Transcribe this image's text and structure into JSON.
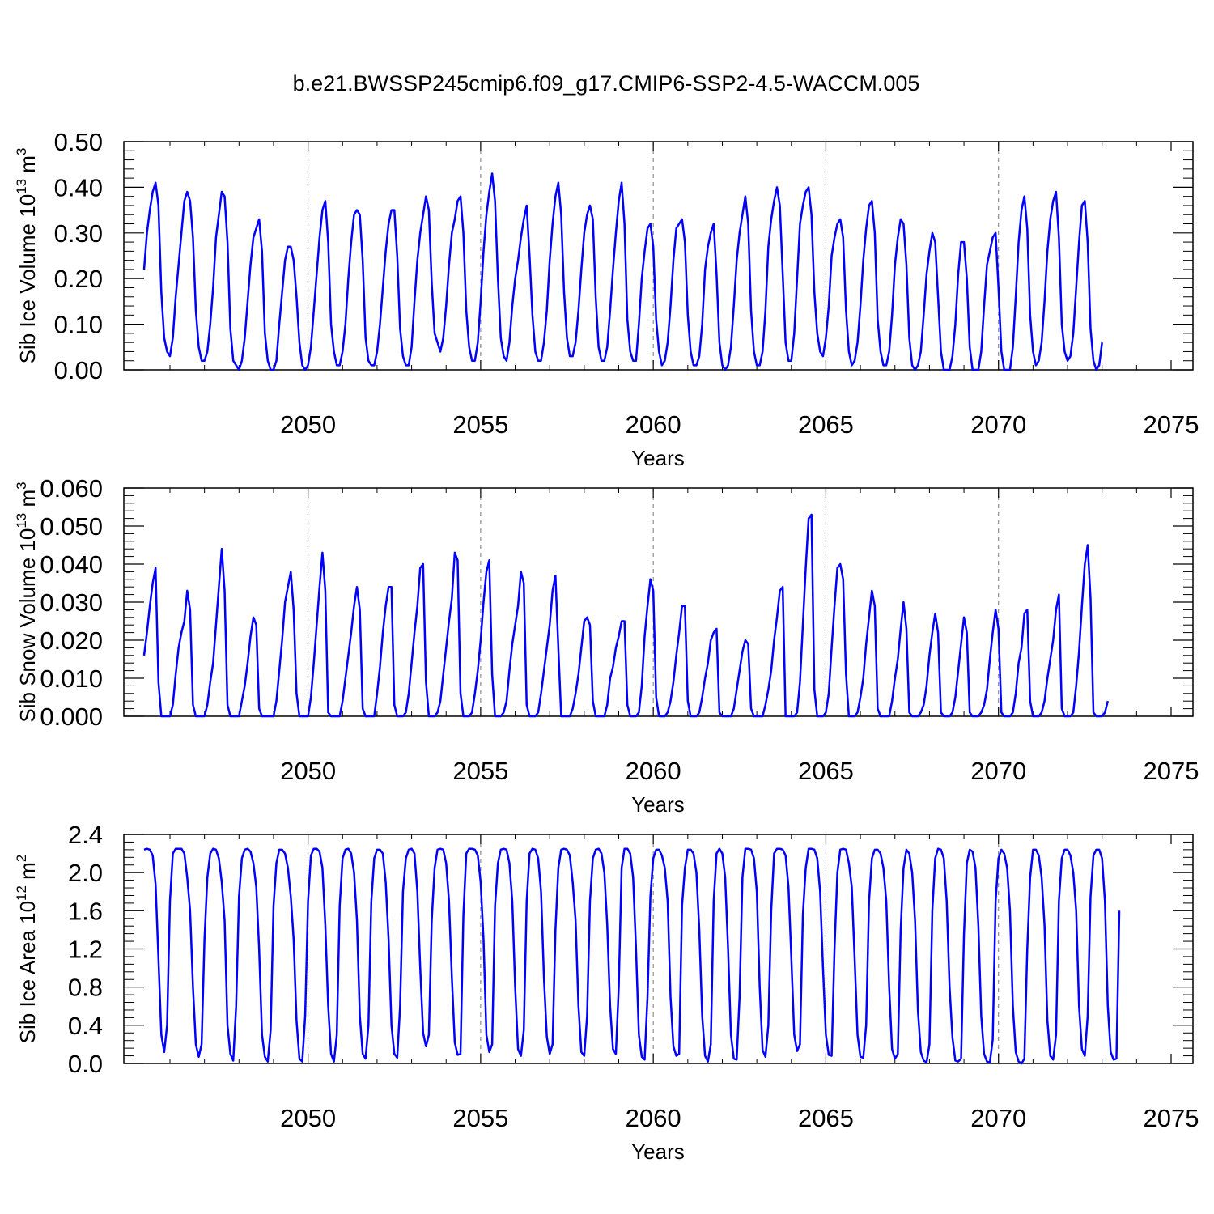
{
  "title": "b.e21.BWSSP245cmip6.f09_g17.CMIP6-SSP2-4.5-WACCM.005",
  "line_color": "#0000ff",
  "chart_data": [
    {
      "type": "line",
      "ylabel": "Sib Ice Volume 10",
      "ylabel_sup": "13",
      "ylabel_unit": " m",
      "ylabel_unit_sup": "3",
      "xlabel": "Years",
      "xlim": [
        2045.25,
        2075.0
      ],
      "ylim": [
        0.0,
        0.5
      ],
      "xticks": [
        2050,
        2055,
        2060,
        2065,
        2070,
        2075
      ],
      "xtick_labels": [
        "2050",
        "2055",
        "2060",
        "2065",
        "2070",
        "2075"
      ],
      "yticks": [
        0.0,
        0.1,
        0.2,
        0.3,
        0.4,
        0.5
      ],
      "ytick_labels": [
        "0.00",
        "0.10",
        "0.20",
        "0.30",
        "0.40",
        "0.50"
      ],
      "grid": "vertical dashed at 5-year ticks",
      "x_start": 2045.25,
      "x_step_months": 1,
      "values": [
        0.22,
        0.3,
        0.35,
        0.39,
        0.41,
        0.36,
        0.17,
        0.07,
        0.04,
        0.03,
        0.07,
        0.16,
        0.23,
        0.3,
        0.37,
        0.39,
        0.37,
        0.29,
        0.13,
        0.05,
        0.02,
        0.02,
        0.04,
        0.1,
        0.18,
        0.29,
        0.34,
        0.39,
        0.38,
        0.28,
        0.09,
        0.02,
        0.01,
        0.0,
        0.02,
        0.07,
        0.15,
        0.23,
        0.29,
        0.31,
        0.33,
        0.26,
        0.08,
        0.02,
        0.0,
        0.0,
        0.02,
        0.1,
        0.17,
        0.24,
        0.27,
        0.27,
        0.24,
        0.16,
        0.06,
        0.01,
        0.0,
        0.01,
        0.05,
        0.13,
        0.21,
        0.29,
        0.35,
        0.37,
        0.28,
        0.1,
        0.04,
        0.01,
        0.01,
        0.04,
        0.1,
        0.2,
        0.28,
        0.34,
        0.35,
        0.34,
        0.24,
        0.07,
        0.02,
        0.01,
        0.01,
        0.04,
        0.1,
        0.18,
        0.26,
        0.32,
        0.35,
        0.35,
        0.25,
        0.09,
        0.03,
        0.01,
        0.01,
        0.05,
        0.15,
        0.24,
        0.3,
        0.34,
        0.38,
        0.35,
        0.19,
        0.08,
        0.06,
        0.04,
        0.07,
        0.14,
        0.23,
        0.3,
        0.33,
        0.37,
        0.38,
        0.3,
        0.13,
        0.05,
        0.02,
        0.02,
        0.06,
        0.15,
        0.26,
        0.34,
        0.39,
        0.43,
        0.37,
        0.2,
        0.07,
        0.03,
        0.02,
        0.06,
        0.14,
        0.2,
        0.24,
        0.29,
        0.33,
        0.36,
        0.25,
        0.12,
        0.04,
        0.02,
        0.02,
        0.06,
        0.13,
        0.24,
        0.32,
        0.38,
        0.41,
        0.34,
        0.17,
        0.07,
        0.03,
        0.03,
        0.06,
        0.13,
        0.22,
        0.3,
        0.34,
        0.36,
        0.33,
        0.16,
        0.05,
        0.02,
        0.02,
        0.05,
        0.13,
        0.22,
        0.3,
        0.37,
        0.41,
        0.32,
        0.11,
        0.04,
        0.02,
        0.02,
        0.1,
        0.2,
        0.26,
        0.31,
        0.32,
        0.27,
        0.11,
        0.04,
        0.01,
        0.02,
        0.06,
        0.14,
        0.24,
        0.31,
        0.32,
        0.33,
        0.28,
        0.12,
        0.04,
        0.01,
        0.01,
        0.03,
        0.1,
        0.22,
        0.27,
        0.3,
        0.32,
        0.21,
        0.06,
        0.01,
        0.0,
        0.01,
        0.05,
        0.14,
        0.24,
        0.3,
        0.34,
        0.38,
        0.32,
        0.13,
        0.04,
        0.01,
        0.01,
        0.04,
        0.13,
        0.27,
        0.33,
        0.37,
        0.4,
        0.36,
        0.21,
        0.06,
        0.02,
        0.02,
        0.08,
        0.2,
        0.32,
        0.36,
        0.39,
        0.4,
        0.34,
        0.17,
        0.08,
        0.04,
        0.03,
        0.07,
        0.14,
        0.25,
        0.29,
        0.32,
        0.33,
        0.29,
        0.13,
        0.04,
        0.01,
        0.02,
        0.06,
        0.14,
        0.24,
        0.31,
        0.36,
        0.37,
        0.3,
        0.11,
        0.04,
        0.01,
        0.01,
        0.04,
        0.12,
        0.23,
        0.29,
        0.33,
        0.32,
        0.23,
        0.07,
        0.01,
        0.0,
        0.01,
        0.04,
        0.12,
        0.21,
        0.26,
        0.3,
        0.28,
        0.16,
        0.04,
        0.0,
        0.0,
        0.0,
        0.03,
        0.1,
        0.21,
        0.28,
        0.28,
        0.2,
        0.05,
        0.0,
        0.0,
        0.0,
        0.04,
        0.14,
        0.23,
        0.26,
        0.29,
        0.3,
        0.18,
        0.04,
        0.0,
        0.0,
        0.0,
        0.05,
        0.16,
        0.28,
        0.35,
        0.38,
        0.31,
        0.12,
        0.04,
        0.01,
        0.02,
        0.06,
        0.15,
        0.26,
        0.33,
        0.37,
        0.39,
        0.29,
        0.1,
        0.04,
        0.02,
        0.03,
        0.08,
        0.18,
        0.28,
        0.36,
        0.37,
        0.28,
        0.09,
        0.02,
        0.0,
        0.01,
        0.06
      ]
    },
    {
      "type": "line",
      "ylabel": "Sib Snow Volume 10",
      "ylabel_sup": "13",
      "ylabel_unit": " m",
      "ylabel_unit_sup": "3",
      "xlabel": "Years",
      "xlim": [
        2045.25,
        2075.0
      ],
      "ylim": [
        0.0,
        0.06
      ],
      "xticks": [
        2050,
        2055,
        2060,
        2065,
        2070,
        2075
      ],
      "xtick_labels": [
        "2050",
        "2055",
        "2060",
        "2065",
        "2070",
        "2075"
      ],
      "yticks": [
        0.0,
        0.01,
        0.02,
        0.03,
        0.04,
        0.05,
        0.06
      ],
      "ytick_labels": [
        "0.000",
        "0.010",
        "0.020",
        "0.030",
        "0.040",
        "0.050",
        "0.060"
      ],
      "grid": "vertical dashed at 5-year ticks",
      "x_start": 2045.25,
      "x_step_months": 1,
      "values": [
        0.016,
        0.022,
        0.029,
        0.035,
        0.039,
        0.009,
        0.0,
        0.0,
        0.0,
        0.0,
        0.003,
        0.011,
        0.018,
        0.022,
        0.025,
        0.033,
        0.028,
        0.003,
        0.0,
        0.0,
        0.0,
        0.0,
        0.003,
        0.009,
        0.014,
        0.024,
        0.034,
        0.044,
        0.033,
        0.003,
        0.0,
        0.0,
        0.0,
        0.0,
        0.004,
        0.008,
        0.014,
        0.021,
        0.026,
        0.024,
        0.002,
        0.0,
        0.0,
        0.0,
        0.0,
        0.0,
        0.004,
        0.012,
        0.02,
        0.03,
        0.034,
        0.038,
        0.028,
        0.006,
        0.0,
        0.0,
        0.0,
        0.0,
        0.005,
        0.014,
        0.024,
        0.034,
        0.043,
        0.033,
        0.001,
        0.0,
        0.0,
        0.0,
        0.0,
        0.004,
        0.01,
        0.016,
        0.022,
        0.029,
        0.034,
        0.028,
        0.002,
        0.0,
        0.0,
        0.0,
        0.0,
        0.006,
        0.013,
        0.022,
        0.029,
        0.034,
        0.034,
        0.003,
        0.0,
        0.0,
        0.0,
        0.001,
        0.006,
        0.014,
        0.022,
        0.029,
        0.039,
        0.04,
        0.009,
        0.0,
        0.0,
        0.0,
        0.001,
        0.004,
        0.011,
        0.018,
        0.025,
        0.031,
        0.043,
        0.041,
        0.006,
        0.0,
        0.0,
        0.0,
        0.001,
        0.006,
        0.012,
        0.02,
        0.03,
        0.038,
        0.041,
        0.011,
        0.0,
        0.0,
        0.0,
        0.001,
        0.004,
        0.012,
        0.019,
        0.024,
        0.029,
        0.038,
        0.035,
        0.003,
        0.0,
        0.0,
        0.0,
        0.001,
        0.006,
        0.012,
        0.018,
        0.024,
        0.033,
        0.037,
        0.018,
        0.0,
        0.0,
        0.0,
        0.0,
        0.002,
        0.006,
        0.011,
        0.018,
        0.025,
        0.026,
        0.024,
        0.004,
        0.0,
        0.0,
        0.0,
        0.0,
        0.003,
        0.01,
        0.013,
        0.018,
        0.021,
        0.025,
        0.025,
        0.003,
        0.0,
        0.0,
        0.0,
        0.001,
        0.008,
        0.021,
        0.029,
        0.036,
        0.033,
        0.005,
        0.0,
        0.0,
        0.0,
        0.001,
        0.004,
        0.009,
        0.016,
        0.022,
        0.029,
        0.029,
        0.004,
        0.0,
        0.0,
        0.0,
        0.001,
        0.005,
        0.01,
        0.014,
        0.02,
        0.022,
        0.023,
        0.001,
        0.0,
        0.0,
        0.0,
        0.0,
        0.002,
        0.007,
        0.012,
        0.017,
        0.02,
        0.019,
        0.002,
        0.0,
        0.0,
        0.0,
        0.0,
        0.003,
        0.007,
        0.012,
        0.02,
        0.026,
        0.033,
        0.034,
        0.0,
        0.0,
        0.0,
        0.0,
        0.001,
        0.009,
        0.024,
        0.039,
        0.052,
        0.053,
        0.007,
        0.0,
        0.0,
        0.0,
        0.001,
        0.006,
        0.018,
        0.029,
        0.039,
        0.04,
        0.036,
        0.011,
        0.0,
        0.0,
        0.0,
        0.001,
        0.005,
        0.01,
        0.019,
        0.026,
        0.033,
        0.029,
        0.002,
        0.0,
        0.0,
        0.0,
        0.0,
        0.004,
        0.01,
        0.015,
        0.023,
        0.03,
        0.023,
        0.001,
        0.0,
        0.0,
        0.0,
        0.001,
        0.003,
        0.008,
        0.016,
        0.022,
        0.027,
        0.022,
        0.001,
        0.0,
        0.0,
        0.0,
        0.001,
        0.005,
        0.012,
        0.019,
        0.026,
        0.022,
        0.001,
        0.0,
        0.0,
        0.0,
        0.001,
        0.003,
        0.007,
        0.015,
        0.022,
        0.028,
        0.023,
        0.001,
        0.0,
        0.0,
        0.0,
        0.001,
        0.006,
        0.014,
        0.018,
        0.027,
        0.028,
        0.004,
        0.0,
        0.0,
        0.0,
        0.001,
        0.004,
        0.01,
        0.015,
        0.02,
        0.028,
        0.032,
        0.002,
        0.0,
        0.0,
        0.0,
        0.001,
        0.008,
        0.017,
        0.029,
        0.04,
        0.045,
        0.031,
        0.001,
        0.0,
        0.0,
        0.0,
        0.001,
        0.004
      ]
    },
    {
      "type": "line",
      "ylabel": "Sib Ice Area 10",
      "ylabel_sup": "12",
      "ylabel_unit": " m",
      "ylabel_unit_sup": "2",
      "xlabel": "Years",
      "xlim": [
        2045.25,
        2075.0
      ],
      "ylim": [
        0.0,
        2.4
      ],
      "xticks": [
        2050,
        2055,
        2060,
        2065,
        2070,
        2075
      ],
      "xtick_labels": [
        "2050",
        "2055",
        "2060",
        "2065",
        "2070",
        "2075"
      ],
      "yticks": [
        0.0,
        0.4,
        0.8,
        1.2,
        1.6,
        2.0,
        2.4
      ],
      "ytick_labels": [
        "0.0",
        "0.4",
        "0.8",
        "1.2",
        "1.6",
        "2.0",
        "2.4"
      ],
      "grid": "vertical dashed at 5-year ticks",
      "x_start": 2045.25,
      "x_step_months": 1,
      "values": [
        2.24,
        2.25,
        2.24,
        2.18,
        1.88,
        1.1,
        0.3,
        0.12,
        0.4,
        1.7,
        2.2,
        2.25,
        2.25,
        2.25,
        2.2,
        1.95,
        1.6,
        0.8,
        0.2,
        0.07,
        0.2,
        1.3,
        1.95,
        2.2,
        2.25,
        2.24,
        2.15,
        1.9,
        1.5,
        0.4,
        0.1,
        0.03,
        0.6,
        1.75,
        2.15,
        2.24,
        2.25,
        2.22,
        2.1,
        1.85,
        1.2,
        0.3,
        0.07,
        0.02,
        0.35,
        1.65,
        2.1,
        2.24,
        2.24,
        2.2,
        2.05,
        1.75,
        1.3,
        0.45,
        0.05,
        0.02,
        0.5,
        1.7,
        2.18,
        2.25,
        2.25,
        2.22,
        2.05,
        1.45,
        0.6,
        0.1,
        0.02,
        0.3,
        1.65,
        2.15,
        2.24,
        2.25,
        2.2,
        2.0,
        1.5,
        0.5,
        0.1,
        0.05,
        0.4,
        1.7,
        2.15,
        2.24,
        2.24,
        2.2,
        1.9,
        1.3,
        0.4,
        0.1,
        0.06,
        0.6,
        1.8,
        2.15,
        2.24,
        2.25,
        2.2,
        1.8,
        1.0,
        0.32,
        0.18,
        0.3,
        1.5,
        2.05,
        2.24,
        2.25,
        2.24,
        2.1,
        1.7,
        0.9,
        0.22,
        0.09,
        0.1,
        1.55,
        2.2,
        2.25,
        2.25,
        2.24,
        2.18,
        1.9,
        1.3,
        0.3,
        0.12,
        0.2,
        1.65,
        2.1,
        2.24,
        2.25,
        2.24,
        2.1,
        1.7,
        0.8,
        0.15,
        0.08,
        0.35,
        1.7,
        2.2,
        2.25,
        2.24,
        2.15,
        1.8,
        0.9,
        0.28,
        0.1,
        0.2,
        1.4,
        2.05,
        2.24,
        2.25,
        2.24,
        2.18,
        1.9,
        1.5,
        0.6,
        0.12,
        0.08,
        0.5,
        1.7,
        2.15,
        2.24,
        2.25,
        2.2,
        2.0,
        1.45,
        0.6,
        0.15,
        0.1,
        0.8,
        2.05,
        2.25,
        2.25,
        2.2,
        1.95,
        1.2,
        0.3,
        0.07,
        0.04,
        0.7,
        1.75,
        2.15,
        2.24,
        2.24,
        2.18,
        2.05,
        1.7,
        0.7,
        0.18,
        0.08,
        0.1,
        1.65,
        2.05,
        2.24,
        2.24,
        2.2,
        2.0,
        1.4,
        0.5,
        0.08,
        0.02,
        0.2,
        1.7,
        2.2,
        2.25,
        2.2,
        1.95,
        1.2,
        0.3,
        0.05,
        0.04,
        0.7,
        1.95,
        2.25,
        2.25,
        2.24,
        2.15,
        1.8,
        0.8,
        0.14,
        0.07,
        0.4,
        1.6,
        2.2,
        2.25,
        2.25,
        2.24,
        2.18,
        1.85,
        1.1,
        0.3,
        0.13,
        0.2,
        1.55,
        2.05,
        2.25,
        2.25,
        2.24,
        2.15,
        1.8,
        1.0,
        0.3,
        0.09,
        0.08,
        1.2,
        2.0,
        2.24,
        2.25,
        2.24,
        2.1,
        1.85,
        1.1,
        0.3,
        0.07,
        0.06,
        0.4,
        1.7,
        2.15,
        2.24,
        2.24,
        2.2,
        2.05,
        1.7,
        0.8,
        0.15,
        0.05,
        0.1,
        1.4,
        2.05,
        2.24,
        2.2,
        2.0,
        1.5,
        0.55,
        0.12,
        0.03,
        0.01,
        0.2,
        1.6,
        2.15,
        2.25,
        2.24,
        2.15,
        1.7,
        0.8,
        0.27,
        0.03,
        0.02,
        0.05,
        1.35,
        2.1,
        2.24,
        2.22,
        2.05,
        1.45,
        0.5,
        0.1,
        0.02,
        0.01,
        0.25,
        1.7,
        2.15,
        2.24,
        2.2,
        2.05,
        1.6,
        0.6,
        0.12,
        0.02,
        0.0,
        0.05,
        1.2,
        1.95,
        2.24,
        2.24,
        2.18,
        1.95,
        1.45,
        0.45,
        0.08,
        0.04,
        0.3,
        1.7,
        2.15,
        2.24,
        2.24,
        2.18,
        2.0,
        1.6,
        0.6,
        0.15,
        0.08,
        0.5,
        1.75,
        2.18,
        2.24,
        2.24,
        2.15,
        1.7,
        0.6,
        0.12,
        0.04,
        0.05,
        1.6
      ]
    }
  ]
}
